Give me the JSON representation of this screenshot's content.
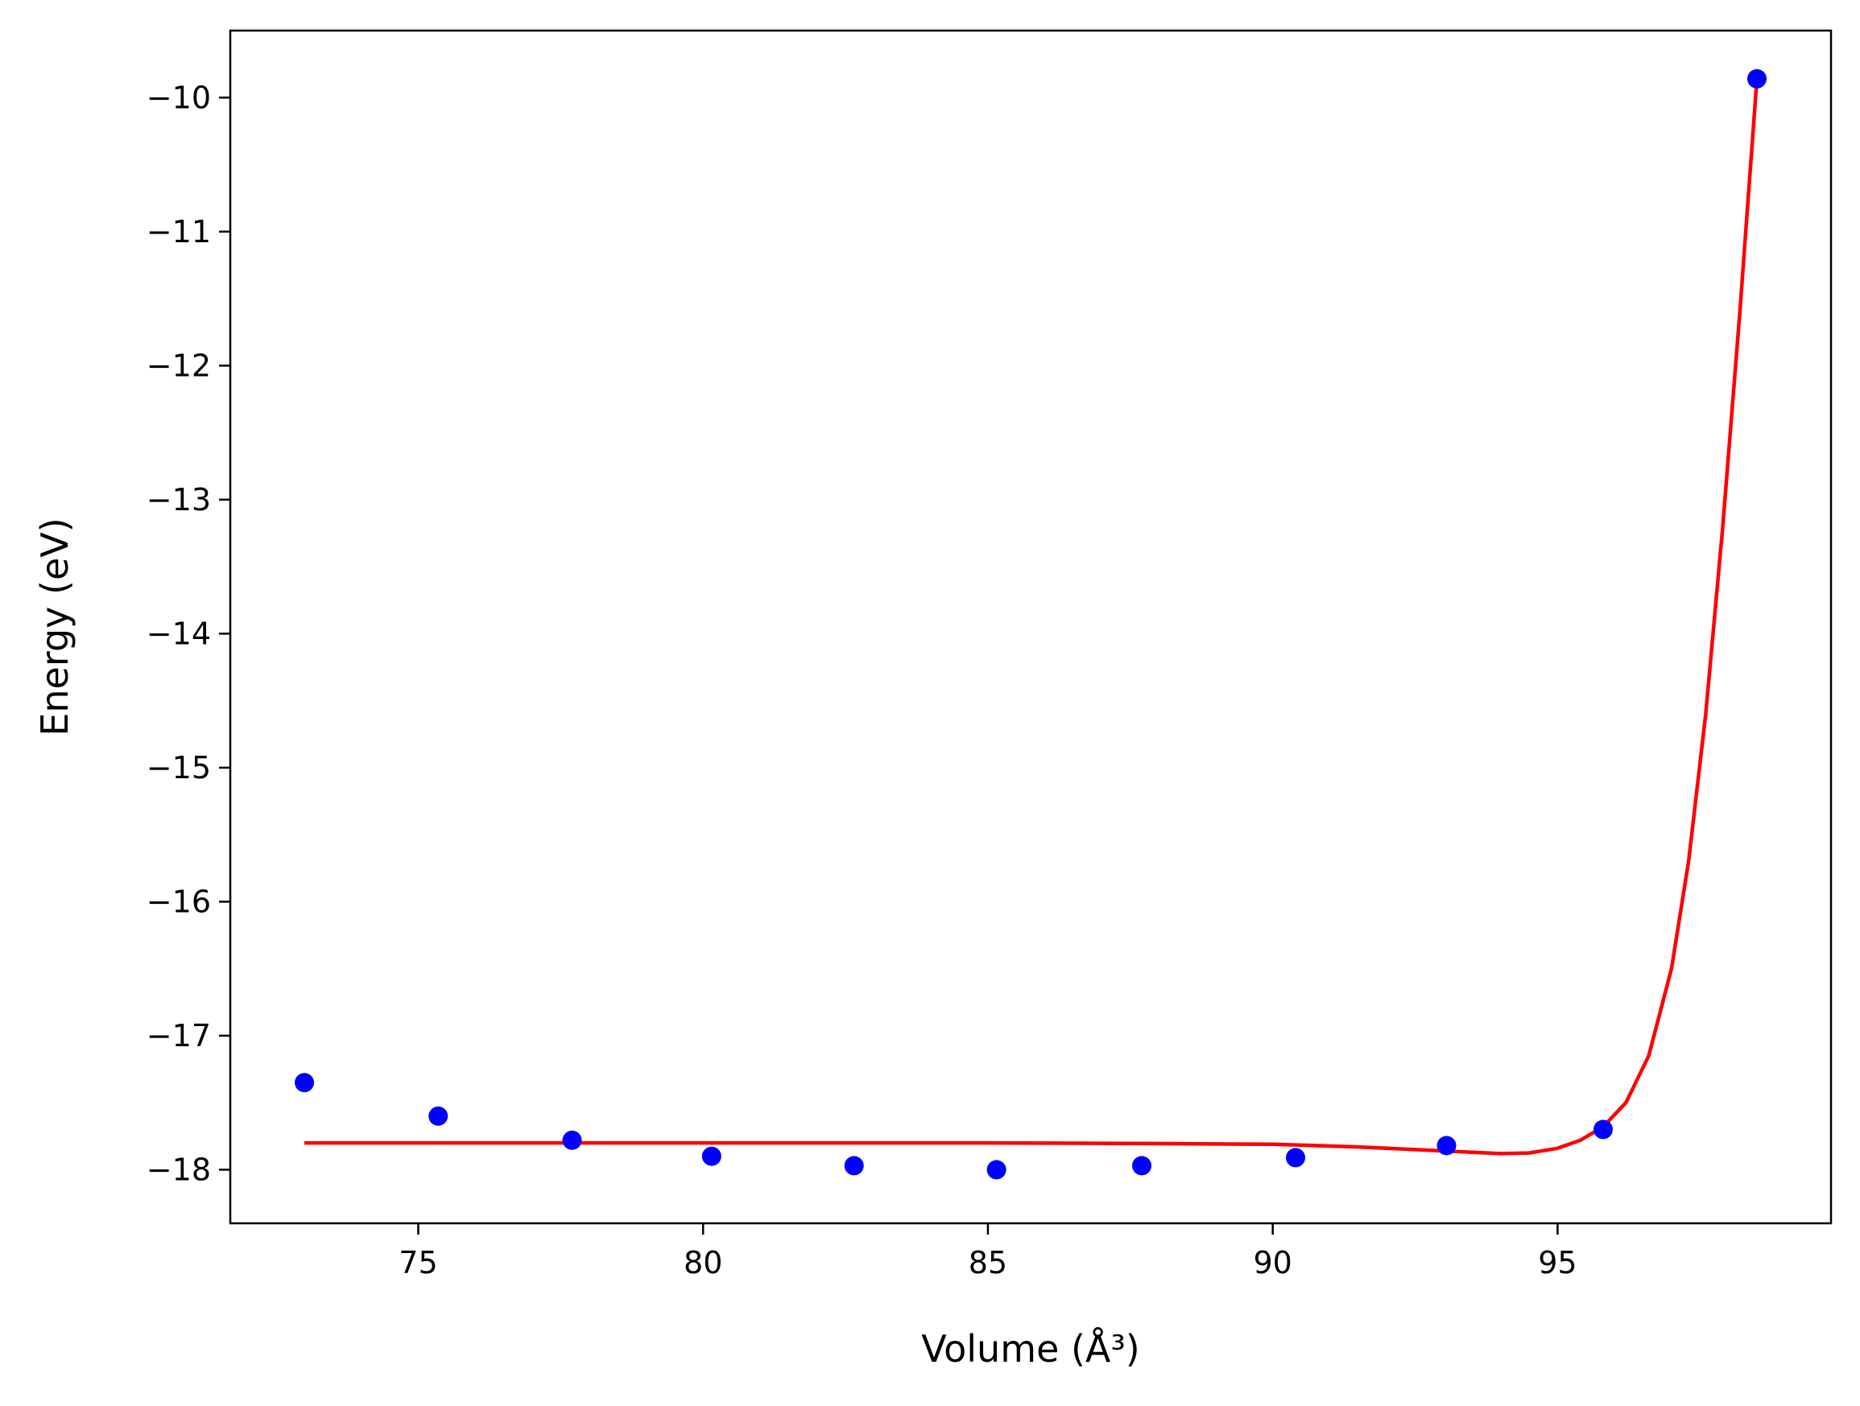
{
  "chart_data": {
    "type": "scatter",
    "xlabel": "Volume (Å³)",
    "ylabel": "Energy (eV)",
    "xlim": [
      71.7,
      99.8
    ],
    "ylim": [
      -18.4,
      -9.5
    ],
    "xticks": [
      75,
      80,
      85,
      90,
      95
    ],
    "yticks": [
      -10,
      -11,
      -12,
      -13,
      -14,
      -15,
      -16,
      -17,
      -18
    ],
    "grid": false,
    "legend": "none",
    "series": [
      {
        "kind": "points",
        "color": "#0000ff",
        "x": [
          73.0,
          75.35,
          77.7,
          80.15,
          82.65,
          85.15,
          87.7,
          90.4,
          93.05,
          95.8,
          98.5
        ],
        "y": [
          -17.35,
          -17.6,
          -17.78,
          -17.9,
          -17.97,
          -18.0,
          -17.97,
          -17.91,
          -17.82,
          -17.7,
          -9.86
        ]
      },
      {
        "kind": "fit-line",
        "color": "#ff0000",
        "x": [
          73.0,
          80.0,
          85.0,
          88.0,
          90.0,
          91.5,
          92.5,
          93.5,
          94.0,
          94.5,
          95.0,
          95.4,
          95.8,
          96.2,
          96.6,
          97.0,
          97.3,
          97.6,
          97.9,
          98.2,
          98.5
        ],
        "y": [
          -17.8,
          -17.8,
          -17.8,
          -17.805,
          -17.81,
          -17.83,
          -17.85,
          -17.87,
          -17.88,
          -17.875,
          -17.84,
          -17.78,
          -17.68,
          -17.5,
          -17.15,
          -16.5,
          -15.7,
          -14.6,
          -13.2,
          -11.6,
          -9.86
        ]
      }
    ]
  }
}
